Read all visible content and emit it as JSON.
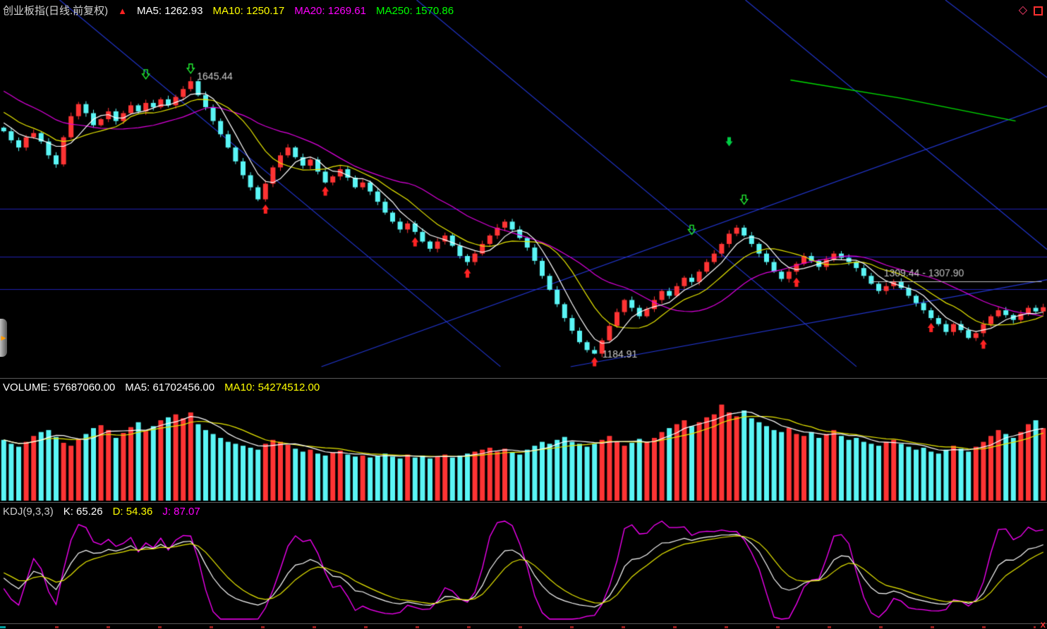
{
  "header": {
    "title": "创业板指(日线.前复权)",
    "ma_labels": [
      {
        "text": "MA5: 1262.93",
        "color": "#ffffff"
      },
      {
        "text": "MA10: 1250.17",
        "color": "#ffff00"
      },
      {
        "text": "MA20: 1269.61",
        "color": "#ff00ff"
      },
      {
        "text": "MA250: 1570.86",
        "color": "#00ff00"
      }
    ]
  },
  "corner": {
    "diamond": "◇"
  },
  "left_handle": {
    "arrow": "▶"
  },
  "bottom_bar": {
    "close_label": "X"
  },
  "volume_header": {
    "items": [
      {
        "text": "VOLUME: 57687060.00",
        "color": "#ffffff"
      },
      {
        "text": "MA5: 61702456.00",
        "color": "#ffffff"
      },
      {
        "text": "MA10: 54274512.00",
        "color": "#ffff00"
      }
    ]
  },
  "kdj_header": {
    "items": [
      {
        "text": "KDJ(9,3,3)",
        "color": "#cccccc"
      },
      {
        "text": "K: 65.26",
        "color": "#ffffff"
      },
      {
        "text": "D: 54.36",
        "color": "#ffff00"
      },
      {
        "text": "J: 87.07",
        "color": "#ff00ff"
      }
    ]
  },
  "chart_data": [
    {
      "type": "candlestick",
      "title": "创业板指(日线.前复权)",
      "ylim": [
        1155,
        1740
      ],
      "up_color": "#ff3434",
      "down_color": "#5af5f5",
      "trend_color": "#2337d4",
      "ma_colors": {
        "ma5": "#ffffff",
        "ma10": "#e8e800",
        "ma20": "#e000e0"
      },
      "marker_colors": {
        "up": "#ff2323",
        "down_hollow": "#22ee33",
        "down_fill": "#00cc44"
      },
      "closes": [
        1555,
        1540,
        1528,
        1545,
        1552,
        1538,
        1515,
        1500,
        1545,
        1580,
        1600,
        1585,
        1565,
        1575,
        1588,
        1572,
        1585,
        1598,
        1588,
        1602,
        1595,
        1608,
        1598,
        1612,
        1625,
        1638,
        1615,
        1595,
        1572,
        1550,
        1528,
        1505,
        1482,
        1462,
        1442,
        1468,
        1495,
        1515,
        1528,
        1512,
        1498,
        1508,
        1488,
        1470,
        1480,
        1492,
        1478,
        1462,
        1470,
        1455,
        1438,
        1420,
        1405,
        1392,
        1402,
        1388,
        1372,
        1360,
        1372,
        1382,
        1365,
        1348,
        1338,
        1352,
        1368,
        1382,
        1395,
        1405,
        1392,
        1378,
        1362,
        1340,
        1315,
        1292,
        1268,
        1245,
        1224,
        1205,
        1192,
        1186,
        1208,
        1232,
        1255,
        1275,
        1262,
        1248,
        1260,
        1275,
        1290,
        1282,
        1298,
        1312,
        1305,
        1322,
        1338,
        1352,
        1368,
        1385,
        1395,
        1382,
        1368,
        1352,
        1338,
        1322,
        1310,
        1322,
        1335,
        1348,
        1340,
        1330,
        1342,
        1352,
        1345,
        1338,
        1328,
        1315,
        1302,
        1290,
        1298,
        1306,
        1295,
        1282,
        1270,
        1258,
        1245,
        1235,
        1222,
        1235,
        1225,
        1212,
        1220,
        1235,
        1248,
        1258,
        1250,
        1242,
        1252,
        1262,
        1256,
        1263
      ],
      "hlines": [
        {
          "price": 1426,
          "color": "#2020b0"
        },
        {
          "price": 1347,
          "color": "#2020b0"
        },
        {
          "price": 1293,
          "color": "#2020b0"
        }
      ],
      "trendlines": [
        {
          "x1": 0.057,
          "y1": 0.0,
          "x2": 0.478,
          "y2": 0.97
        },
        {
          "x1": 0.398,
          "y1": 0.0,
          "x2": 0.818,
          "y2": 0.97
        },
        {
          "x1": 0.712,
          "y1": 0.0,
          "x2": 1.0,
          "y2": 0.66
        },
        {
          "x1": 0.903,
          "y1": 0.0,
          "x2": 1.0,
          "y2": 0.205
        },
        {
          "x1": 0.307,
          "y1": 0.97,
          "x2": 1.0,
          "y2": 0.28
        },
        {
          "x1": 0.545,
          "y1": 0.97,
          "x2": 1.0,
          "y2": 0.74
        }
      ],
      "ma250": {
        "color": "#00e000",
        "points": [
          [
            0.755,
            1640
          ],
          [
            0.86,
            1610
          ],
          [
            0.97,
            1572
          ]
        ]
      },
      "markers": [
        {
          "type": "down-hollow",
          "i": 19,
          "price": 1636
        },
        {
          "type": "down-hollow",
          "i": 25
        },
        {
          "type": "up",
          "i": 35
        },
        {
          "type": "up",
          "i": 43
        },
        {
          "type": "up",
          "i": 55
        },
        {
          "type": "up",
          "i": 62
        },
        {
          "type": "up",
          "i": 79
        },
        {
          "type": "down-hollow",
          "i": 92,
          "price": 1378
        },
        {
          "type": "down-filled",
          "i": 97,
          "price": 1530
        },
        {
          "type": "down-hollow",
          "i": 99,
          "price": 1428
        },
        {
          "type": "up",
          "i": 106
        },
        {
          "type": "up",
          "i": 124
        },
        {
          "type": "up",
          "i": 131
        }
      ],
      "annotations": [
        {
          "label": "1645.44",
          "index": 25,
          "price": 1645.44,
          "pos": "high"
        },
        {
          "label": "1184.91",
          "index": 79,
          "price": 1184.91,
          "pos": "low"
        },
        {
          "label": "1309.44 - 1307.90",
          "price": 1305.5,
          "line": true,
          "x1": 0.832,
          "x2": 0.995,
          "color": "#c0c0c0"
        }
      ]
    },
    {
      "type": "bar",
      "name": "VOLUME",
      "ymax": 105,
      "ma_colors": {
        "ma5": "#ffffff",
        "ma10": "#e8e800"
      },
      "values": [
        62,
        58,
        55,
        60,
        66,
        70,
        72,
        65,
        59,
        56,
        63,
        68,
        74,
        77,
        72,
        64,
        69,
        75,
        80,
        71,
        76,
        82,
        85,
        88,
        84,
        90,
        78,
        72,
        68,
        64,
        60,
        58,
        56,
        54,
        52,
        58,
        62,
        60,
        57,
        53,
        50,
        52,
        48,
        46,
        49,
        51,
        47,
        45,
        46,
        44,
        46,
        48,
        45,
        43,
        47,
        44,
        46,
        43,
        45,
        47,
        44,
        46,
        48,
        50,
        52,
        54,
        50,
        53,
        49,
        47,
        52,
        56,
        60,
        58,
        62,
        65,
        60,
        58,
        55,
        58,
        62,
        66,
        60,
        56,
        59,
        63,
        60,
        64,
        70,
        74,
        78,
        82,
        76,
        80,
        85,
        88,
        98,
        90,
        86,
        92,
        84,
        80,
        76,
        72,
        70,
        74,
        68,
        66,
        70,
        64,
        68,
        72,
        66,
        62,
        64,
        60,
        58,
        56,
        60,
        62,
        58,
        55,
        52,
        54,
        50,
        48,
        52,
        56,
        53,
        50,
        55,
        60,
        66,
        72,
        68,
        64,
        70,
        78,
        82,
        74
      ]
    },
    {
      "type": "line",
      "name": "KDJ",
      "params": [
        9,
        3,
        3
      ],
      "series_colors": {
        "K": "#ffffff",
        "D": "#e8e800",
        "J": "#ff00ff"
      },
      "last_values": {
        "K": 65.26,
        "D": 54.36,
        "J": 87.07
      }
    }
  ]
}
